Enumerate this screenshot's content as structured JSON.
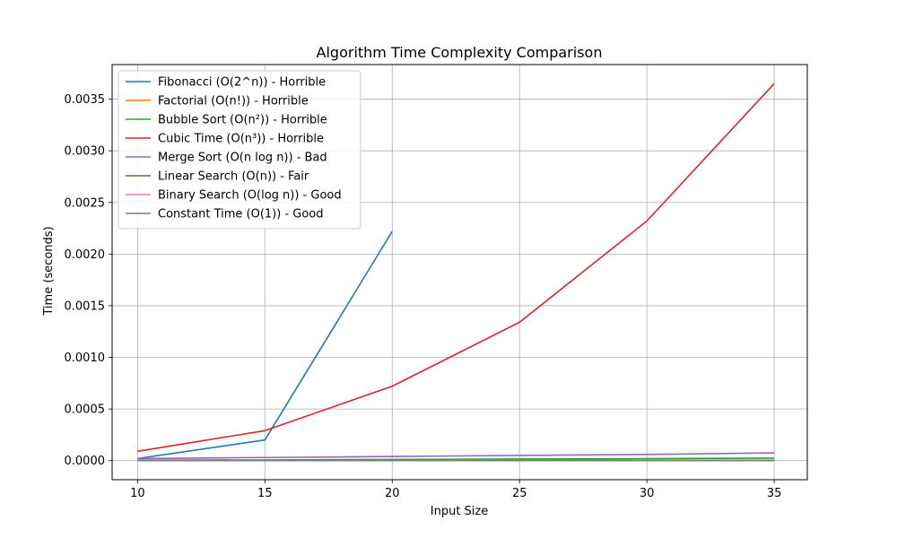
{
  "chart_data": {
    "type": "line",
    "title": "Algorithm Time Complexity Comparison",
    "xlabel": "Input Size",
    "ylabel": "Time (seconds)",
    "xlim": [
      9.0,
      36.3
    ],
    "ylim": [
      -0.000185,
      0.003835
    ],
    "xticks": [
      10,
      15,
      20,
      25,
      30,
      35
    ],
    "yticks": [
      0.0,
      0.0005,
      0.001,
      0.0015,
      0.002,
      0.0025,
      0.003,
      0.0035
    ],
    "ytick_labels": [
      "0.0000",
      "0.0005",
      "0.0010",
      "0.0015",
      "0.0020",
      "0.0025",
      "0.0030",
      "0.0035"
    ],
    "grid": true,
    "legend_position": "top-left",
    "series": [
      {
        "name": "Fibonacci (O(2^n)) - Horrible",
        "color": "#1f77b4",
        "x": [
          10,
          15,
          20
        ],
        "y": [
          2e-05,
          0.0002,
          0.00222
        ]
      },
      {
        "name": "Factorial (O(n!)) - Horrible",
        "color": "#ff7f0e",
        "x": [
          10
        ],
        "y": [
          3e-06
        ]
      },
      {
        "name": "Bubble Sort (O(n²)) - Horrible",
        "color": "#2ca02c",
        "x": [
          10,
          15,
          20,
          25,
          30,
          35
        ],
        "y": [
          4e-06,
          7e-06,
          1.1e-05,
          1.5e-05,
          1.9e-05,
          2.4e-05
        ]
      },
      {
        "name": "Cubic Time (O(n³)) - Horrible",
        "color": "#d62728",
        "x": [
          10,
          15,
          20,
          25,
          30,
          35
        ],
        "y": [
          9e-05,
          0.00029,
          0.00072,
          0.00134,
          0.00232,
          0.00365
        ]
      },
      {
        "name": "Merge Sort (O(n log n)) - Bad",
        "color": "#9467bd",
        "x": [
          10,
          15,
          20,
          25,
          30,
          35
        ],
        "y": [
          2e-05,
          3e-05,
          4e-05,
          5e-05,
          6e-05,
          7.5e-05
        ]
      },
      {
        "name": "Linear Search (O(n)) - Fair",
        "color": "#8c564b",
        "x": [
          10,
          15,
          20,
          25,
          30,
          35
        ],
        "y": [
          1e-06,
          1.5e-06,
          2e-06,
          2.5e-06,
          3e-06,
          3.5e-06
        ]
      },
      {
        "name": "Binary Search (O(log n)) - Good",
        "color": "#e377c2",
        "x": [
          10,
          15,
          20,
          25,
          30,
          35
        ],
        "y": [
          1e-06,
          1e-06,
          1e-06,
          1e-06,
          1e-06,
          1e-06
        ]
      },
      {
        "name": "Constant Time (O(1)) - Good",
        "color": "#7f7f7f",
        "x": [
          10,
          15,
          20,
          25,
          30,
          35
        ],
        "y": [
          5e-07,
          5e-07,
          5e-07,
          5e-07,
          5e-07,
          5e-07
        ]
      }
    ]
  }
}
